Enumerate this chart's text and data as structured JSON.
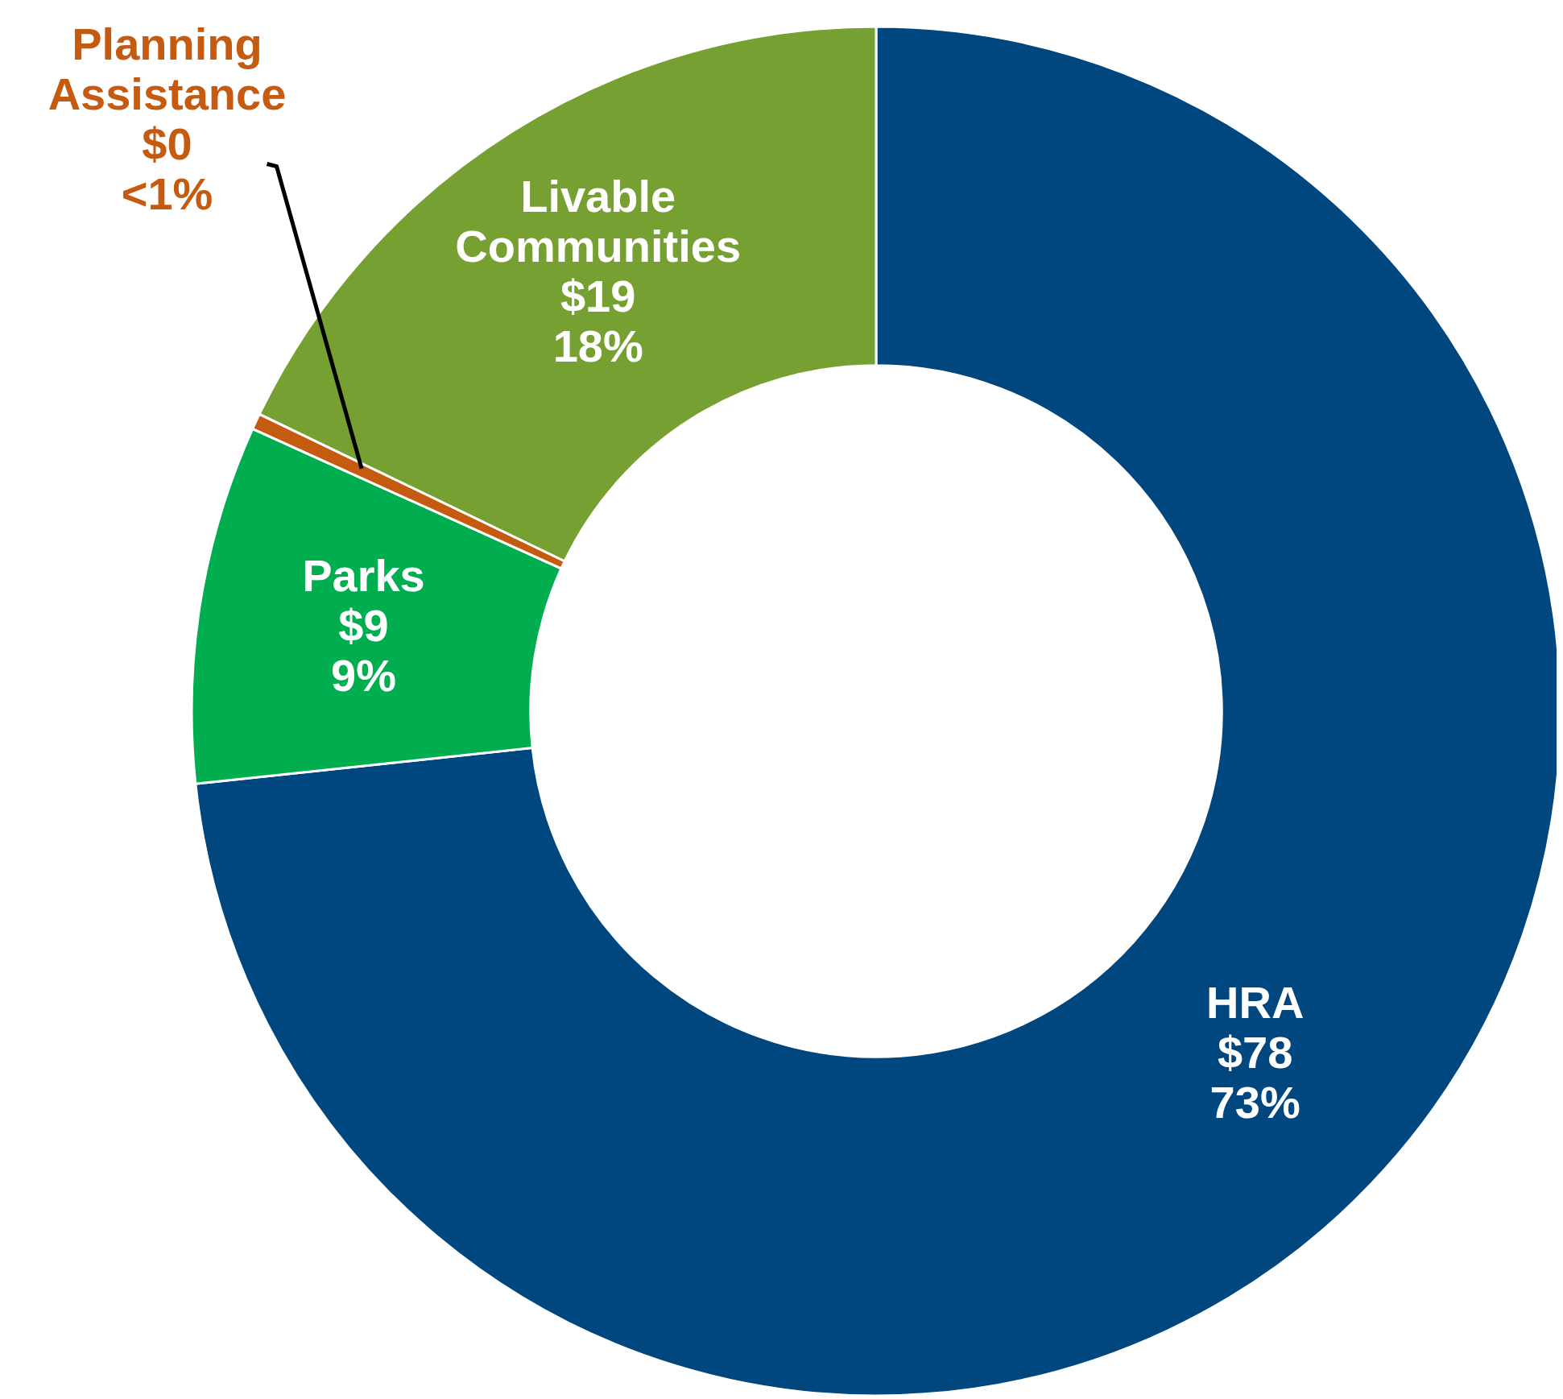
{
  "chart_data": {
    "type": "donut",
    "categories": [
      "HRA",
      "Parks",
      "Planning Assistance",
      "Livable Communities"
    ],
    "values": [
      78,
      9,
      0.4,
      19
    ],
    "value_labels": [
      "$78\n73%",
      "$9\n9%",
      "$0\n<1%",
      "$19\n18%"
    ],
    "colors": [
      "#00467f",
      "#00ae4f",
      "#c55a11",
      "#77a032"
    ]
  }
}
